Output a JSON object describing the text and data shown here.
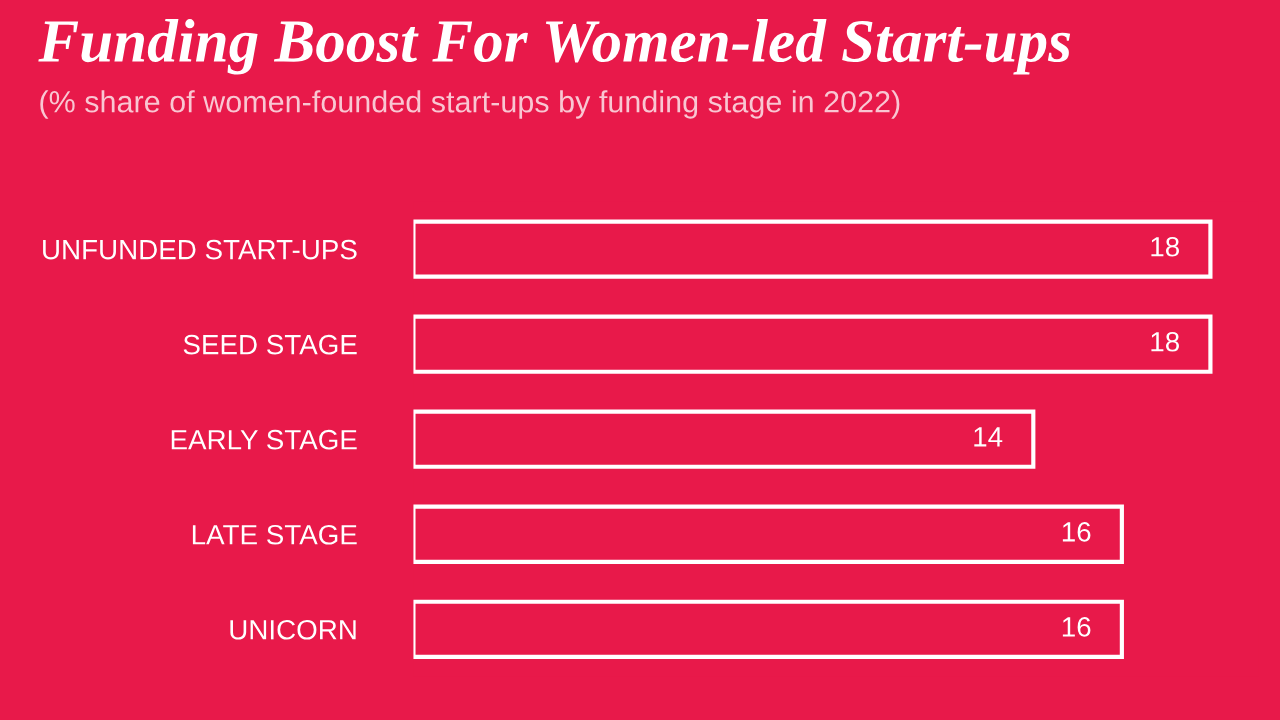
{
  "chart_data": {
    "type": "bar",
    "orientation": "horizontal",
    "title": "Funding Boost For Women-led Start-ups",
    "subtitle": "(% share of women-founded start-ups by funding stage in 2022)",
    "categories": [
      "UNFUNDED START-UPS",
      "SEED STAGE",
      "EARLY STAGE",
      "LATE STAGE",
      "UNICORN"
    ],
    "values": [
      18,
      18,
      14,
      16,
      16
    ],
    "color": "#ffffff",
    "data_labels": true,
    "grid": false,
    "legend": false
  }
}
